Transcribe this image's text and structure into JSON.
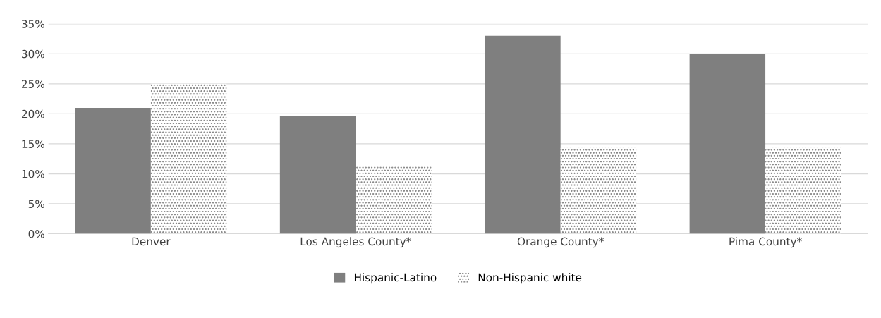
{
  "chart_data": {
    "type": "bar",
    "categories": [
      "Denver",
      "Los Angeles County*",
      "Orange County*",
      "Pima County*"
    ],
    "series": [
      {
        "name": "Hispanic-Latino",
        "color": "#7f7f7f",
        "values": [
          21,
          19.7,
          33,
          30
        ]
      },
      {
        "name": "Non-Hispanic white",
        "color": "#ffffff",
        "values": [
          25,
          11.2,
          14.3,
          14.3
        ]
      }
    ],
    "ylim": [
      0,
      35
    ],
    "yticks": [
      {
        "value": 0,
        "label": "0%"
      },
      {
        "value": 5,
        "label": "5%"
      },
      {
        "value": 10,
        "label": "10%"
      },
      {
        "value": 15,
        "label": "15%"
      },
      {
        "value": 20,
        "label": "20%"
      },
      {
        "value": 25,
        "label": "25%"
      },
      {
        "value": 30,
        "label": "30%"
      },
      {
        "value": 35,
        "label": "35%"
      }
    ],
    "grid": "y",
    "legend": "bottom"
  }
}
